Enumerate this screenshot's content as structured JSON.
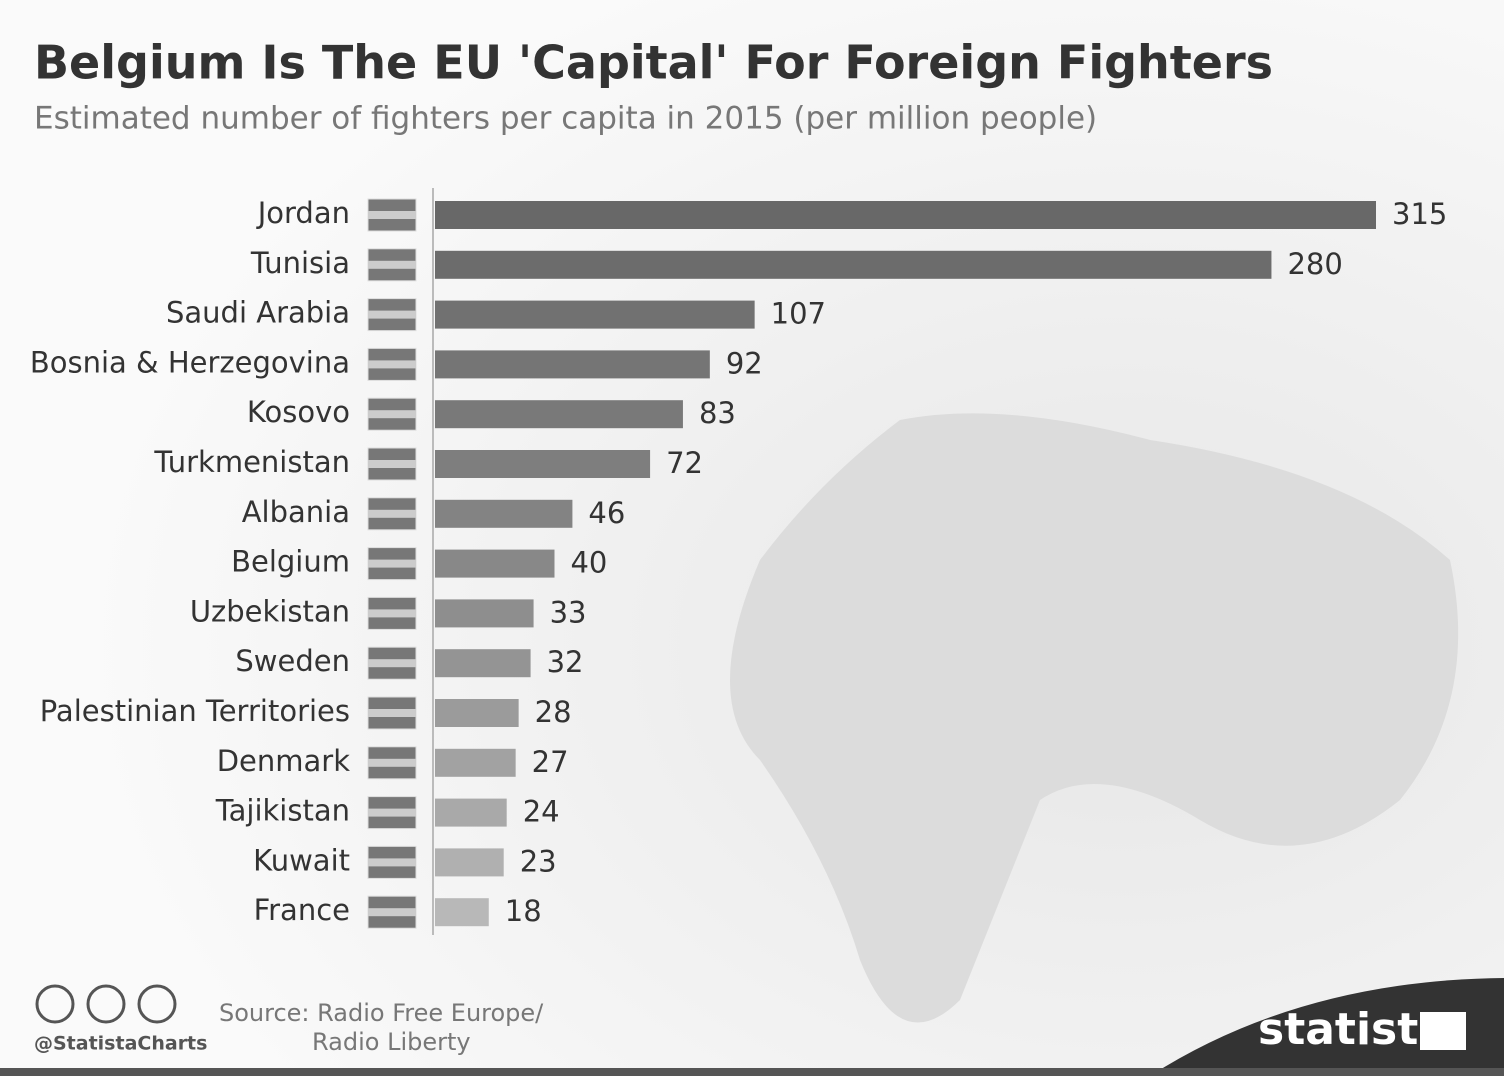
{
  "chart_data": {
    "type": "bar",
    "title": "Belgium Is The EU 'Capital' For Foreign Fighters",
    "subtitle": "Estimated number of fighters per capita in 2015 (per million people)",
    "categories": [
      "Jordan",
      "Tunisia",
      "Saudi Arabia",
      "Bosnia & Herzegovina",
      "Kosovo",
      "Turkmenistan",
      "Albania",
      "Belgium",
      "Uzbekistan",
      "Sweden",
      "Palestinian Territories",
      "Denmark",
      "Tajikistan",
      "Kuwait",
      "France"
    ],
    "values": [
      315,
      280,
      107,
      92,
      83,
      72,
      46,
      40,
      33,
      32,
      28,
      27,
      24,
      23,
      18
    ],
    "colors": [
      "#686868",
      "#6c6c6c",
      "#717171",
      "#757575",
      "#797979",
      "#7e7e7e",
      "#838383",
      "#888888",
      "#8e8e8e",
      "#949494",
      "#9b9b9b",
      "#a2a2a2",
      "#a9a9a9",
      "#b0b0b0",
      "#b8b8b8"
    ],
    "source": [
      "Source: Radio Free Europe/",
      "Radio Liberty"
    ],
    "handle": "@StatistaCharts",
    "logo": "statista"
  }
}
